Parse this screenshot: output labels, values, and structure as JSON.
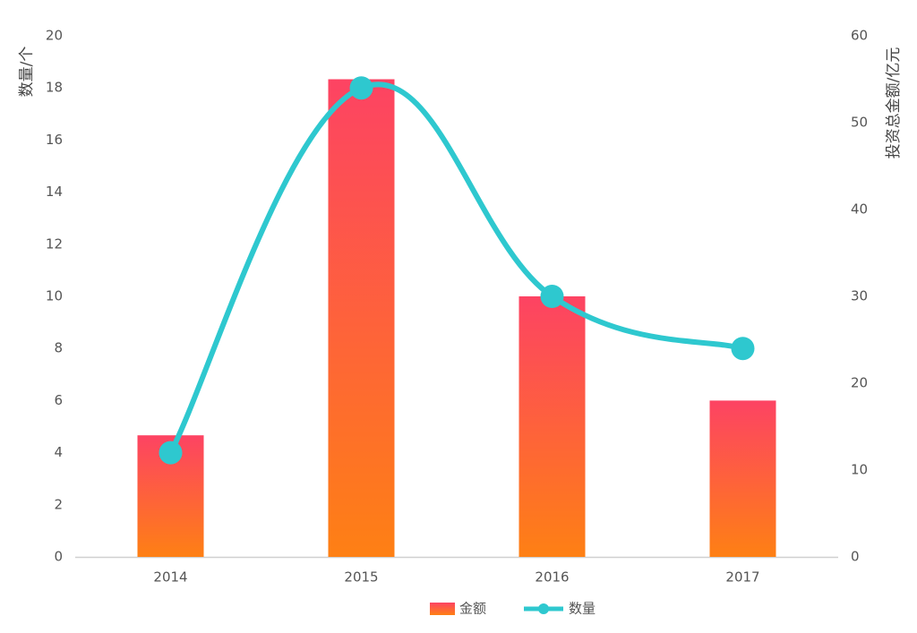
{
  "chart_data": {
    "type": "bar-line",
    "categories": [
      "2014",
      "2015",
      "2016",
      "2017"
    ],
    "series": [
      {
        "name": "金额",
        "type": "bar",
        "axis": "y2",
        "color": "#fd4363",
        "values": [
          14,
          55,
          30,
          18
        ]
      },
      {
        "name": "数量",
        "type": "line",
        "color": "#2ec8cf",
        "values": [
          4,
          18,
          10,
          8
        ]
      }
    ],
    "ylabel": "数量/个",
    "y2label": "投资总金额/亿元",
    "ylim": [
      0,
      20
    ],
    "yticks": [
      0,
      2,
      4,
      6,
      8,
      10,
      12,
      14,
      16,
      18,
      20
    ],
    "y2lim": [
      0,
      60
    ],
    "y2ticks": [
      0,
      10,
      20,
      30,
      40,
      50,
      60
    ],
    "grid": false,
    "legend": "bottom"
  }
}
